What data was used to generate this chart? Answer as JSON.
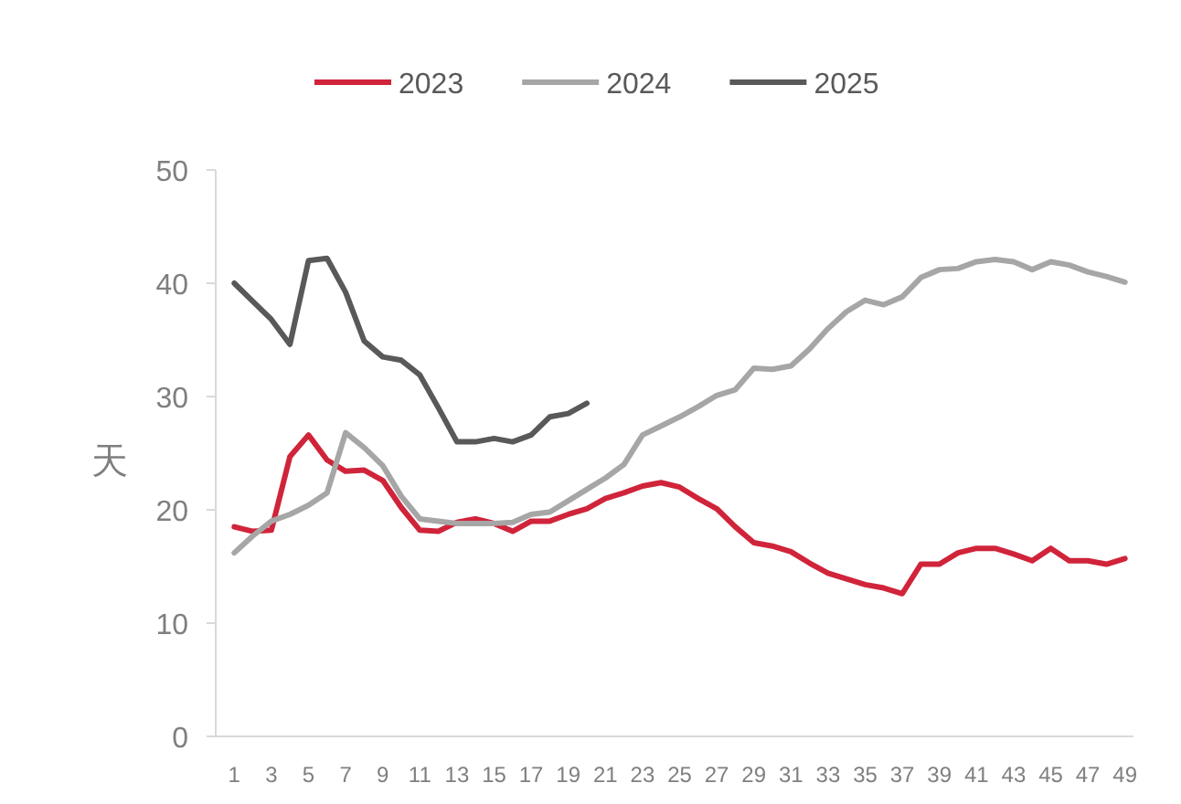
{
  "chart_data": {
    "type": "line",
    "ylabel": "天",
    "x": [
      1,
      2,
      3,
      4,
      5,
      6,
      7,
      8,
      9,
      10,
      11,
      12,
      13,
      14,
      15,
      16,
      17,
      18,
      19,
      20,
      21,
      22,
      23,
      24,
      25,
      26,
      27,
      28,
      29,
      30,
      31,
      32,
      33,
      34,
      35,
      36,
      37,
      38,
      39,
      40,
      41,
      42,
      43,
      44,
      45,
      46,
      47,
      48,
      49
    ],
    "xlim": [
      0,
      50
    ],
    "xticks": [
      1,
      3,
      5,
      7,
      9,
      11,
      13,
      15,
      17,
      19,
      21,
      23,
      25,
      27,
      29,
      31,
      33,
      35,
      37,
      39,
      41,
      43,
      45,
      47,
      49
    ],
    "ylim": [
      0,
      50
    ],
    "yticks": [
      0,
      10,
      20,
      30,
      40,
      50
    ],
    "legend": "top",
    "marker": "none",
    "line_style": "solid",
    "series": [
      {
        "name": "2023",
        "color": "#d0243a",
        "values": [
          18.5,
          18.1,
          18.2,
          24.7,
          26.6,
          24.4,
          23.4,
          23.5,
          22.6,
          20.2,
          18.2,
          18.1,
          18.9,
          19.2,
          18.8,
          18.1,
          19.0,
          19.0,
          19.6,
          20.1,
          21.0,
          21.5,
          22.1,
          22.4,
          22.0,
          21.0,
          20.1,
          18.5,
          17.1,
          16.8,
          16.3,
          15.3,
          14.4,
          13.9,
          13.4,
          13.1,
          12.6,
          15.2,
          15.2,
          16.2,
          16.6,
          16.6,
          16.1,
          15.5,
          16.6,
          15.5,
          15.5,
          15.2,
          15.7
        ]
      },
      {
        "name": "2024",
        "color": "#a6a6a6",
        "values": [
          16.2,
          17.7,
          19.0,
          19.6,
          20.4,
          21.5,
          26.8,
          25.5,
          23.9,
          21.2,
          19.2,
          19.0,
          18.8,
          18.8,
          18.8,
          18.9,
          19.6,
          19.8,
          20.8,
          21.8,
          22.8,
          24.0,
          26.6,
          27.4,
          28.2,
          29.1,
          30.1,
          30.6,
          32.5,
          32.4,
          32.7,
          34.2,
          36.0,
          37.5,
          38.5,
          38.1,
          38.8,
          40.5,
          41.2,
          41.3,
          41.9,
          42.1,
          41.9,
          41.2,
          41.9,
          41.6,
          41.0,
          40.6,
          40.1
        ]
      },
      {
        "name": "2025",
        "color": "#595959",
        "values": [
          40.0,
          38.4,
          36.8,
          34.6,
          42.0,
          42.2,
          39.2,
          34.9,
          33.5,
          33.2,
          31.9,
          29.0,
          26.0,
          26.0,
          26.3,
          26.0,
          26.6,
          28.2,
          28.5,
          29.4,
          null,
          null,
          null,
          null,
          null,
          null,
          null,
          null,
          null,
          null,
          null,
          null,
          null,
          null,
          null,
          null,
          null,
          null,
          null,
          null,
          null,
          null,
          null,
          null,
          null,
          null,
          null,
          null,
          null
        ]
      }
    ]
  }
}
